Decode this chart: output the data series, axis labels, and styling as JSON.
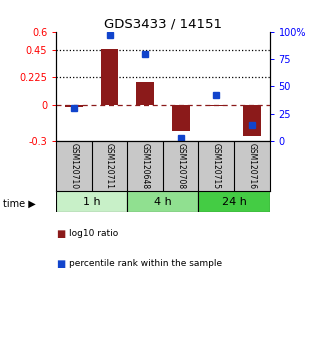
{
  "title": "GDS3433 / 14151",
  "samples": [
    "GSM120710",
    "GSM120711",
    "GSM120648",
    "GSM120708",
    "GSM120715",
    "GSM120716"
  ],
  "log10_ratio": [
    -0.02,
    0.46,
    0.19,
    -0.22,
    -0.01,
    -0.26
  ],
  "percentile_rank": [
    30,
    97,
    80,
    3,
    42,
    15
  ],
  "time_groups": [
    {
      "label": "1 h",
      "samples": [
        0,
        1
      ],
      "color": "#c8f0c8"
    },
    {
      "label": "4 h",
      "samples": [
        2,
        3
      ],
      "color": "#90e090"
    },
    {
      "label": "24 h",
      "samples": [
        4,
        5
      ],
      "color": "#44cc44"
    }
  ],
  "ylim_left": [
    -0.3,
    0.6
  ],
  "ylim_right": [
    0,
    100
  ],
  "yticks_left": [
    -0.3,
    0,
    0.225,
    0.45,
    0.6
  ],
  "ytick_labels_left": [
    "-0.3",
    "0",
    "0.225",
    "0.45",
    "0.6"
  ],
  "yticks_right": [
    0,
    25,
    50,
    75,
    100
  ],
  "ytick_labels_right": [
    "0",
    "25",
    "50",
    "75",
    "100%"
  ],
  "hlines_dotted": [
    0.45,
    0.225
  ],
  "bar_color": "#8B1A1A",
  "dot_color": "#1144CC",
  "zero_line_color": "#8B1A1A",
  "bg_color": "#ffffff",
  "plot_bg": "#ffffff",
  "label_bg": "#c8c8c8",
  "legend_items": [
    {
      "color": "#8B1A1A",
      "label": "log10 ratio"
    },
    {
      "color": "#1144CC",
      "label": "percentile rank within the sample"
    }
  ]
}
